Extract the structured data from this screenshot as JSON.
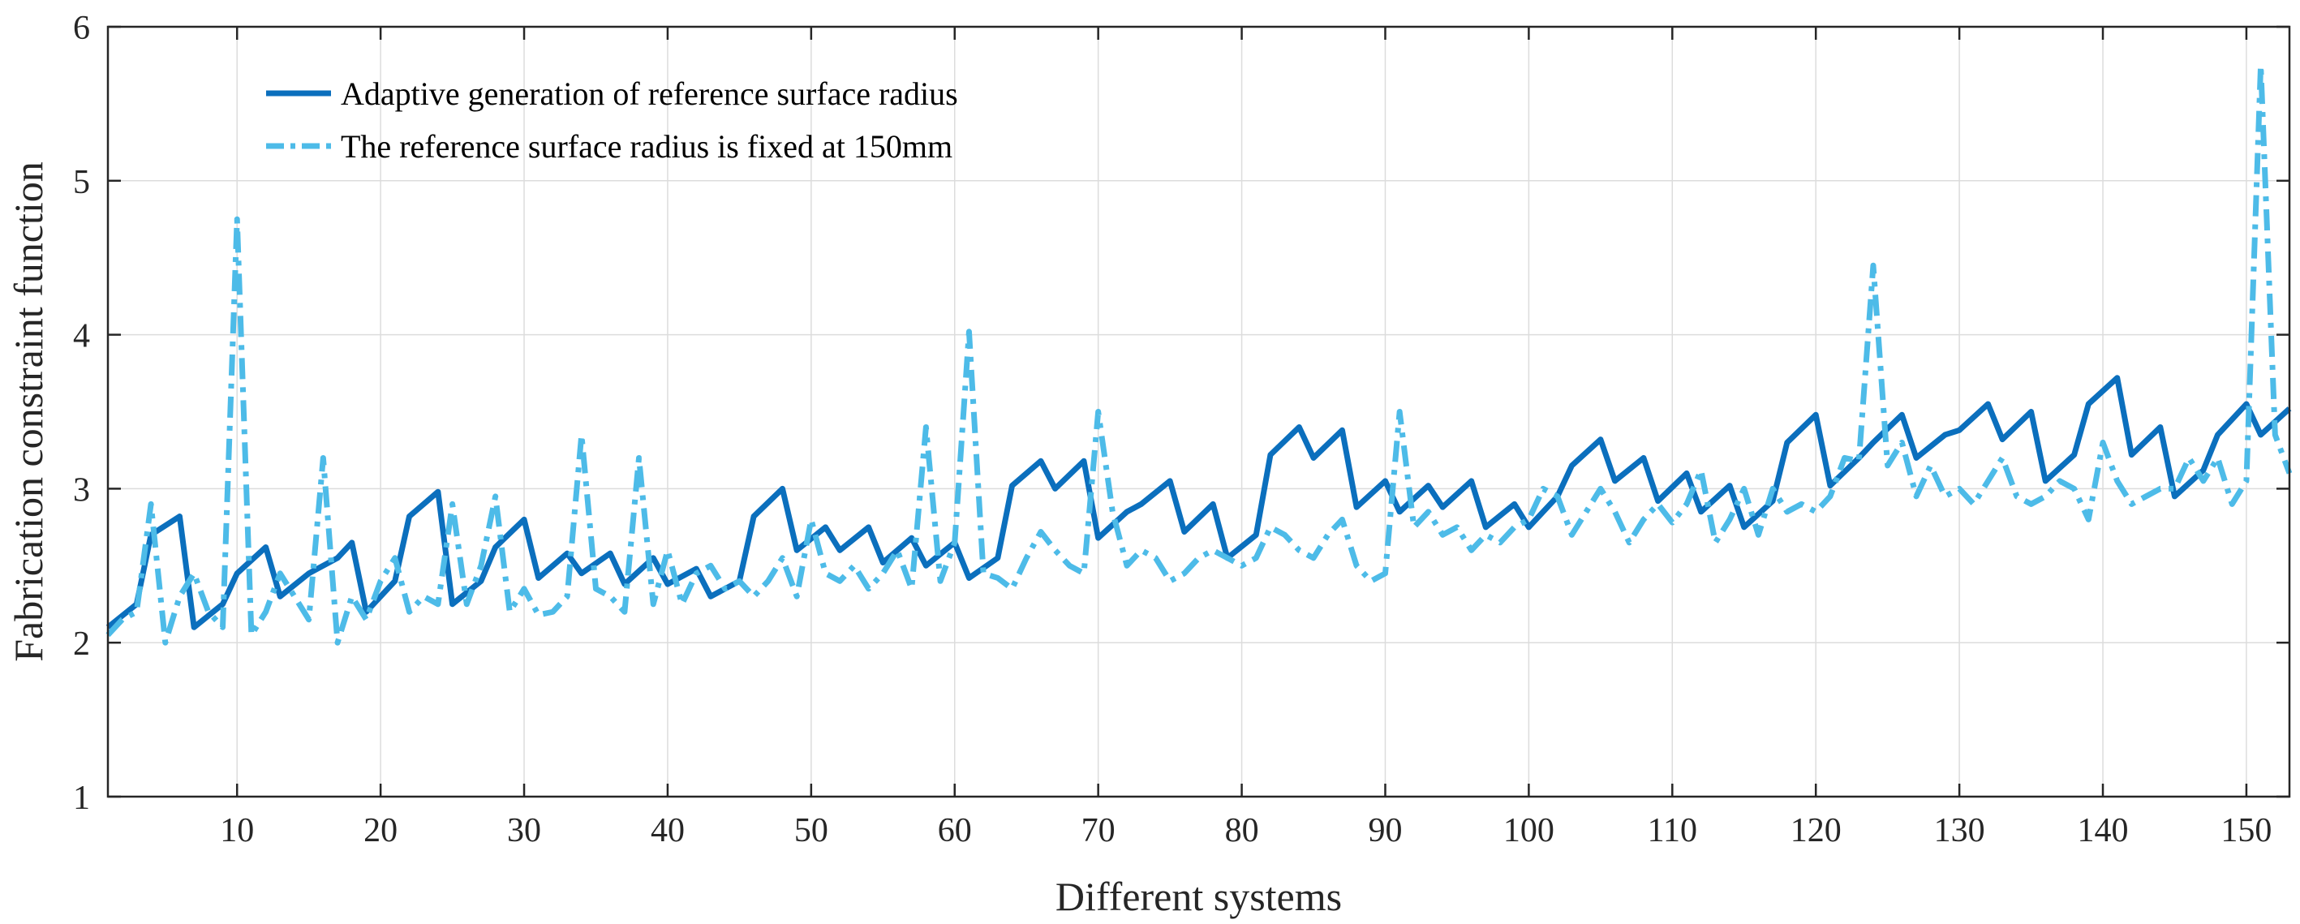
{
  "chart_data": {
    "type": "line",
    "title": "",
    "xlabel": "Different systems",
    "ylabel": "Fabrication constraint function",
    "xlim": [
      1,
      153
    ],
    "ylim": [
      1,
      6
    ],
    "xticks": [
      10,
      20,
      30,
      40,
      50,
      60,
      70,
      80,
      90,
      100,
      110,
      120,
      130,
      140,
      150
    ],
    "yticks": [
      1,
      2,
      3,
      4,
      5,
      6
    ],
    "grid": true,
    "legend_position": "top-left",
    "colors": {
      "adaptive": "#0b6fbd",
      "fixed": "#4dbbe8"
    },
    "series": [
      {
        "name": "Adaptive generation of reference surface radius",
        "style": "solid",
        "points": [
          [
            1,
            2.1
          ],
          [
            3,
            2.25
          ],
          [
            4,
            2.7
          ],
          [
            6,
            2.82
          ],
          [
            7,
            2.1
          ],
          [
            9,
            2.25
          ],
          [
            10,
            2.45
          ],
          [
            12,
            2.62
          ],
          [
            13,
            2.3
          ],
          [
            15,
            2.45
          ],
          [
            17,
            2.55
          ],
          [
            18,
            2.65
          ],
          [
            19,
            2.2
          ],
          [
            21,
            2.4
          ],
          [
            22,
            2.82
          ],
          [
            24,
            2.98
          ],
          [
            25,
            2.25
          ],
          [
            27,
            2.4
          ],
          [
            28,
            2.62
          ],
          [
            30,
            2.8
          ],
          [
            31,
            2.42
          ],
          [
            33,
            2.58
          ],
          [
            34,
            2.45
          ],
          [
            36,
            2.58
          ],
          [
            37,
            2.38
          ],
          [
            39,
            2.55
          ],
          [
            40,
            2.38
          ],
          [
            42,
            2.48
          ],
          [
            43,
            2.3
          ],
          [
            45,
            2.4
          ],
          [
            46,
            2.82
          ],
          [
            48,
            3.0
          ],
          [
            49,
            2.6
          ],
          [
            51,
            2.75
          ],
          [
            52,
            2.6
          ],
          [
            54,
            2.75
          ],
          [
            55,
            2.52
          ],
          [
            57,
            2.68
          ],
          [
            58,
            2.5
          ],
          [
            60,
            2.65
          ],
          [
            61,
            2.42
          ],
          [
            63,
            2.55
          ],
          [
            64,
            3.02
          ],
          [
            66,
            3.18
          ],
          [
            67,
            3.0
          ],
          [
            69,
            3.18
          ],
          [
            70,
            2.68
          ],
          [
            72,
            2.85
          ],
          [
            73,
            2.9
          ],
          [
            75,
            3.05
          ],
          [
            76,
            2.72
          ],
          [
            78,
            2.9
          ],
          [
            79,
            2.55
          ],
          [
            81,
            2.7
          ],
          [
            82,
            3.22
          ],
          [
            84,
            3.4
          ],
          [
            85,
            3.2
          ],
          [
            87,
            3.38
          ],
          [
            88,
            2.88
          ],
          [
            90,
            3.05
          ],
          [
            91,
            2.85
          ],
          [
            93,
            3.02
          ],
          [
            94,
            2.88
          ],
          [
            96,
            3.05
          ],
          [
            97,
            2.75
          ],
          [
            99,
            2.9
          ],
          [
            100,
            2.75
          ],
          [
            102,
            2.95
          ],
          [
            103,
            3.15
          ],
          [
            105,
            3.32
          ],
          [
            106,
            3.05
          ],
          [
            108,
            3.2
          ],
          [
            109,
            2.92
          ],
          [
            111,
            3.1
          ],
          [
            112,
            2.85
          ],
          [
            114,
            3.02
          ],
          [
            115,
            2.75
          ],
          [
            117,
            2.92
          ],
          [
            118,
            3.3
          ],
          [
            120,
            3.48
          ],
          [
            121,
            3.02
          ],
          [
            123,
            3.2
          ],
          [
            124,
            3.3
          ],
          [
            126,
            3.48
          ],
          [
            127,
            3.2
          ],
          [
            129,
            3.35
          ],
          [
            130,
            3.38
          ],
          [
            132,
            3.55
          ],
          [
            133,
            3.32
          ],
          [
            135,
            3.5
          ],
          [
            136,
            3.05
          ],
          [
            138,
            3.22
          ],
          [
            139,
            3.55
          ],
          [
            141,
            3.72
          ],
          [
            142,
            3.22
          ],
          [
            144,
            3.4
          ],
          [
            145,
            2.95
          ],
          [
            147,
            3.12
          ],
          [
            148,
            3.35
          ],
          [
            150,
            3.55
          ],
          [
            151,
            3.35
          ],
          [
            153,
            3.52
          ]
        ]
      },
      {
        "name": "The reference surface radius is fixed at 150mm",
        "style": "dashdot",
        "points": [
          [
            1,
            2.05
          ],
          [
            2,
            2.15
          ],
          [
            3,
            2.2
          ],
          [
            4,
            2.9
          ],
          [
            5,
            2.0
          ],
          [
            6,
            2.3
          ],
          [
            7,
            2.45
          ],
          [
            8,
            2.2
          ],
          [
            9,
            2.1
          ],
          [
            10,
            4.75
          ],
          [
            11,
            2.05
          ],
          [
            12,
            2.2
          ],
          [
            13,
            2.45
          ],
          [
            14,
            2.3
          ],
          [
            15,
            2.15
          ],
          [
            16,
            3.2
          ],
          [
            17,
            2.0
          ],
          [
            18,
            2.3
          ],
          [
            19,
            2.15
          ],
          [
            20,
            2.4
          ],
          [
            21,
            2.55
          ],
          [
            22,
            2.2
          ],
          [
            23,
            2.3
          ],
          [
            24,
            2.25
          ],
          [
            25,
            2.9
          ],
          [
            26,
            2.25
          ],
          [
            27,
            2.5
          ],
          [
            28,
            2.95
          ],
          [
            29,
            2.2
          ],
          [
            30,
            2.35
          ],
          [
            31,
            2.18
          ],
          [
            32,
            2.2
          ],
          [
            33,
            2.3
          ],
          [
            34,
            3.35
          ],
          [
            35,
            2.35
          ],
          [
            36,
            2.3
          ],
          [
            37,
            2.2
          ],
          [
            38,
            3.2
          ],
          [
            39,
            2.25
          ],
          [
            40,
            2.6
          ],
          [
            41,
            2.25
          ],
          [
            42,
            2.45
          ],
          [
            43,
            2.5
          ],
          [
            44,
            2.35
          ],
          [
            45,
            2.4
          ],
          [
            46,
            2.3
          ],
          [
            47,
            2.4
          ],
          [
            48,
            2.55
          ],
          [
            49,
            2.3
          ],
          [
            50,
            2.8
          ],
          [
            51,
            2.45
          ],
          [
            52,
            2.4
          ],
          [
            53,
            2.5
          ],
          [
            54,
            2.35
          ],
          [
            55,
            2.45
          ],
          [
            56,
            2.6
          ],
          [
            57,
            2.35
          ],
          [
            58,
            3.4
          ],
          [
            59,
            2.4
          ],
          [
            60,
            2.65
          ],
          [
            61,
            4.02
          ],
          [
            62,
            2.45
          ],
          [
            63,
            2.42
          ],
          [
            64,
            2.35
          ],
          [
            65,
            2.55
          ],
          [
            66,
            2.72
          ],
          [
            67,
            2.6
          ],
          [
            68,
            2.5
          ],
          [
            69,
            2.45
          ],
          [
            70,
            3.5
          ],
          [
            71,
            2.85
          ],
          [
            72,
            2.5
          ],
          [
            73,
            2.6
          ],
          [
            74,
            2.55
          ],
          [
            75,
            2.4
          ],
          [
            76,
            2.45
          ],
          [
            77,
            2.55
          ],
          [
            78,
            2.6
          ],
          [
            79,
            2.55
          ],
          [
            80,
            2.5
          ],
          [
            81,
            2.55
          ],
          [
            82,
            2.75
          ],
          [
            83,
            2.7
          ],
          [
            84,
            2.6
          ],
          [
            85,
            2.55
          ],
          [
            86,
            2.7
          ],
          [
            87,
            2.8
          ],
          [
            88,
            2.5
          ],
          [
            89,
            2.4
          ],
          [
            90,
            2.45
          ],
          [
            91,
            3.5
          ],
          [
            92,
            2.75
          ],
          [
            93,
            2.85
          ],
          [
            94,
            2.7
          ],
          [
            95,
            2.75
          ],
          [
            96,
            2.6
          ],
          [
            97,
            2.7
          ],
          [
            98,
            2.65
          ],
          [
            99,
            2.75
          ],
          [
            100,
            2.8
          ],
          [
            101,
            3.0
          ],
          [
            102,
            2.95
          ],
          [
            103,
            2.7
          ],
          [
            104,
            2.85
          ],
          [
            105,
            3.0
          ],
          [
            106,
            2.85
          ],
          [
            107,
            2.65
          ],
          [
            108,
            2.8
          ],
          [
            109,
            2.9
          ],
          [
            110,
            2.78
          ],
          [
            111,
            2.9
          ],
          [
            112,
            3.12
          ],
          [
            113,
            2.65
          ],
          [
            114,
            2.8
          ],
          [
            115,
            3.0
          ],
          [
            116,
            2.7
          ],
          [
            117,
            3.0
          ],
          [
            118,
            2.85
          ],
          [
            119,
            2.9
          ],
          [
            120,
            2.85
          ],
          [
            121,
            2.95
          ],
          [
            122,
            3.2
          ],
          [
            123,
            3.18
          ],
          [
            124,
            4.45
          ],
          [
            125,
            3.15
          ],
          [
            126,
            3.3
          ],
          [
            127,
            2.95
          ],
          [
            128,
            3.15
          ],
          [
            129,
            2.95
          ],
          [
            130,
            3.0
          ],
          [
            131,
            2.9
          ],
          [
            132,
            3.05
          ],
          [
            133,
            3.2
          ],
          [
            134,
            2.95
          ],
          [
            135,
            2.9
          ],
          [
            136,
            2.95
          ],
          [
            137,
            3.05
          ],
          [
            138,
            3.0
          ],
          [
            139,
            2.8
          ],
          [
            140,
            3.3
          ],
          [
            141,
            3.05
          ],
          [
            142,
            2.9
          ],
          [
            143,
            2.95
          ],
          [
            144,
            3.0
          ],
          [
            145,
            3.0
          ],
          [
            146,
            3.2
          ],
          [
            147,
            3.05
          ],
          [
            148,
            3.2
          ],
          [
            149,
            2.9
          ],
          [
            150,
            3.05
          ],
          [
            151,
            5.75
          ],
          [
            152,
            3.35
          ],
          [
            153,
            3.1
          ]
        ]
      }
    ]
  }
}
